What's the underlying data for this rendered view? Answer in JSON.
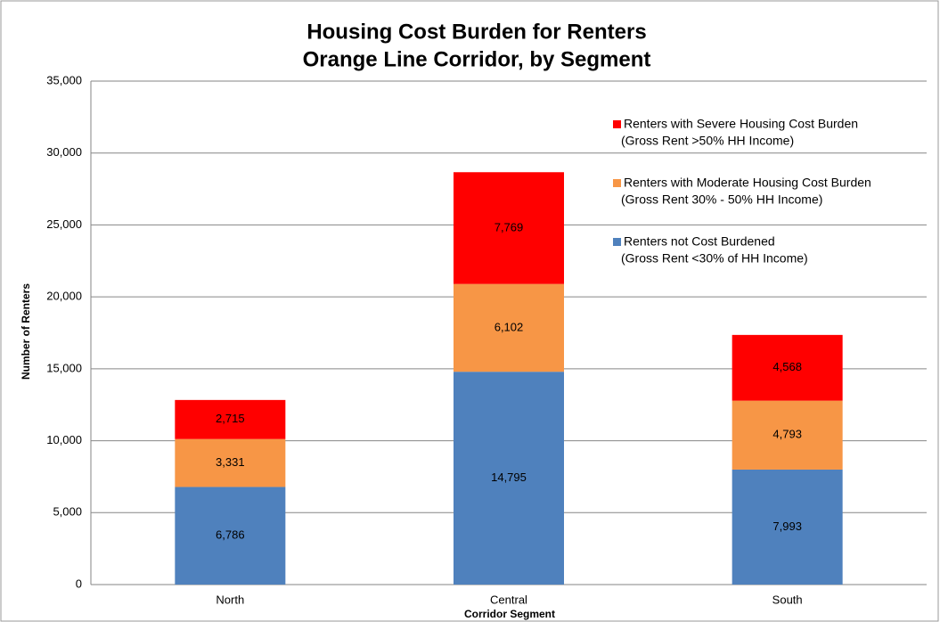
{
  "chart_data": {
    "type": "stacked_bar",
    "title": "Housing Cost Burden for Renters",
    "subtitle": "Orange Line Corridor, by Segment",
    "x_label": "Corridor Segment",
    "y_label": "Number of Renters",
    "categories": [
      "North",
      "Central",
      "South"
    ],
    "series": [
      {
        "name": "Renters not Cost Burdened",
        "legend_note": "(Gross Rent <30% of HH Income)",
        "color": "#4f81bd",
        "values": [
          6786,
          14795,
          7993
        ],
        "value_labels": [
          "6,786",
          "14,795",
          "7,993"
        ]
      },
      {
        "name": "Renters with Moderate Housing Cost Burden",
        "legend_note": "(Gross Rent 30% - 50% HH Income)",
        "color": "#f79646",
        "values": [
          3331,
          6102,
          4793
        ],
        "value_labels": [
          "3,331",
          "6,102",
          "4,793"
        ]
      },
      {
        "name": "Renters with Severe Housing Cost Burden",
        "legend_note": "(Gross Rent >50% HH Income)",
        "color": "#ff0000",
        "values": [
          2715,
          7769,
          4568
        ],
        "value_labels": [
          "2,715",
          "7,769",
          "4,568"
        ]
      }
    ],
    "ylim": [
      0,
      35000
    ],
    "yticks": [
      0,
      {
        "value": 5000,
        "label": "5,000"
      },
      {
        "value": 10000,
        "label": "10,000"
      },
      {
        "value": 15000,
        "label": "15,000"
      },
      {
        "value": 20000,
        "label": "20,000"
      },
      {
        "value": 25000,
        "label": "25,000"
      },
      {
        "value": 30000,
        "label": "30,000"
      },
      {
        "value": 35000,
        "label": "35,000"
      }
    ],
    "grid": true,
    "legend": "upper right"
  }
}
